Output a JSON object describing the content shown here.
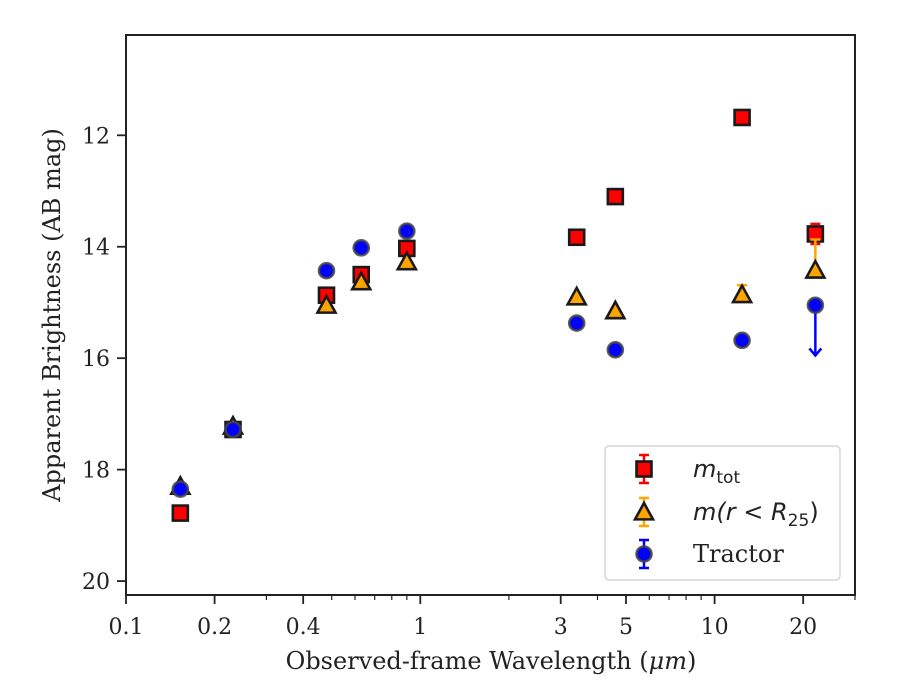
{
  "chart_data": {
    "type": "scatter",
    "xscale": "log",
    "yinverted": true,
    "xlim": [
      0.1,
      30
    ],
    "ylim": [
      20.25,
      10.2
    ],
    "xlabel_prefix": "Observed-frame Wavelength (",
    "xlabel_unit": "μm",
    "xlabel_suffix": ")",
    "ylabel": "Apparent Brightness (AB mag)",
    "x_ticks": [
      {
        "value": 0.1,
        "label": "0.1"
      },
      {
        "value": 0.2,
        "label": "0.2"
      },
      {
        "value": 0.4,
        "label": "0.4"
      },
      {
        "value": 1,
        "label": "1"
      },
      {
        "value": 3,
        "label": "3"
      },
      {
        "value": 5,
        "label": "5"
      },
      {
        "value": 10,
        "label": "10"
      },
      {
        "value": 20,
        "label": "20"
      }
    ],
    "x_minor_ticks": [
      0.3,
      0.5,
      0.6,
      0.7,
      0.8,
      0.9,
      2,
      4,
      6,
      7,
      8,
      9,
      30
    ],
    "y_ticks": [
      {
        "value": 12,
        "label": "12"
      },
      {
        "value": 14,
        "label": "14"
      },
      {
        "value": 16,
        "label": "16"
      },
      {
        "value": 18,
        "label": "18"
      },
      {
        "value": 20,
        "label": "20"
      }
    ],
    "legend_position": "lower-right",
    "series": [
      {
        "name_var": "m",
        "name_sub": "tot",
        "marker": "square",
        "color": "#ff0000",
        "points": [
          {
            "x": 0.153,
            "y": 18.78
          },
          {
            "x": 0.231,
            "y": 17.28
          },
          {
            "x": 0.48,
            "y": 14.87
          },
          {
            "x": 0.63,
            "y": 14.5
          },
          {
            "x": 0.9,
            "y": 14.03
          },
          {
            "x": 3.4,
            "y": 13.83
          },
          {
            "x": 4.6,
            "y": 13.1
          },
          {
            "x": 12.4,
            "y": 11.68
          },
          {
            "x": 22.0,
            "y": 13.77,
            "err_low": 0.18,
            "err_high": 0.18
          }
        ]
      },
      {
        "name_var": "m",
        "name_rest": "(r < R",
        "name_sub": "25",
        "name_end": ")",
        "marker": "triangle",
        "color": "#ffa500",
        "points": [
          {
            "x": 0.153,
            "y": 18.3
          },
          {
            "x": 0.231,
            "y": 17.22
          },
          {
            "x": 0.48,
            "y": 15.05
          },
          {
            "x": 0.63,
            "y": 14.63
          },
          {
            "x": 0.9,
            "y": 14.27
          },
          {
            "x": 3.4,
            "y": 14.9
          },
          {
            "x": 4.6,
            "y": 15.15
          },
          {
            "x": 12.4,
            "y": 14.86,
            "err_low": 0.17,
            "err_high": 0.0
          },
          {
            "x": 22.0,
            "y": 14.42,
            "err_low": 0.55,
            "err_high": 0.0
          }
        ]
      },
      {
        "name": "Tractor",
        "marker": "circle",
        "color": "#0000ff",
        "points": [
          {
            "x": 0.153,
            "y": 18.35
          },
          {
            "x": 0.231,
            "y": 17.28
          },
          {
            "x": 0.48,
            "y": 14.43
          },
          {
            "x": 0.63,
            "y": 14.02
          },
          {
            "x": 0.9,
            "y": 13.72
          },
          {
            "x": 3.4,
            "y": 15.37
          },
          {
            "x": 4.6,
            "y": 15.85
          },
          {
            "x": 12.4,
            "y": 15.68
          },
          {
            "x": 22.0,
            "y": 15.05,
            "upper_limit_to": 15.95
          }
        ]
      }
    ]
  }
}
